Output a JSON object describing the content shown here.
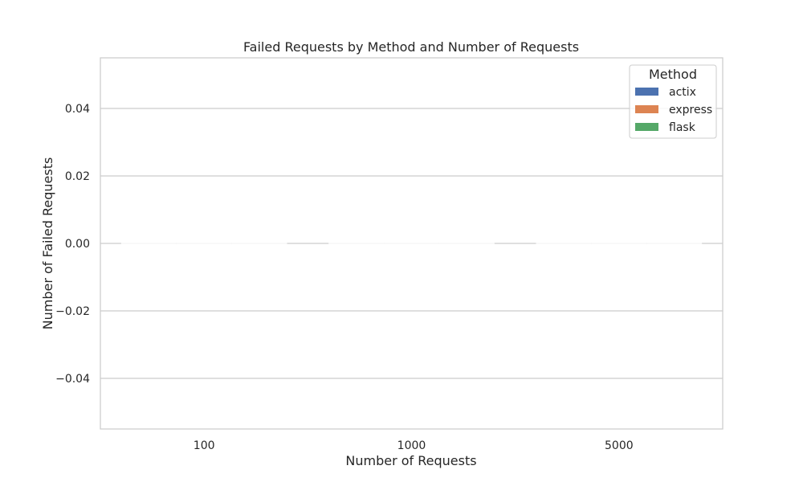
{
  "chart_data": {
    "type": "bar",
    "title": "Failed Requests by Method and Number of Requests",
    "xlabel": "Number of Requests",
    "ylabel": "Number of Failed Requests",
    "categories": [
      "100",
      "1000",
      "5000"
    ],
    "series": [
      {
        "name": "actix",
        "values": [
          0,
          0,
          0
        ],
        "color": "#4c72b0"
      },
      {
        "name": "express",
        "values": [
          0,
          0,
          0
        ],
        "color": "#dd8452"
      },
      {
        "name": "flask",
        "values": [
          0,
          0,
          0
        ],
        "color": "#55a868"
      }
    ],
    "ylim": [
      -0.055,
      0.055
    ],
    "yticks": [
      -0.04,
      -0.02,
      0.0,
      0.02,
      0.04
    ],
    "ytick_labels": [
      "−0.04",
      "−0.02",
      "0.00",
      "0.02",
      "0.04"
    ],
    "grid": true,
    "legend": {
      "title": "Method",
      "placement": "top-right"
    }
  }
}
